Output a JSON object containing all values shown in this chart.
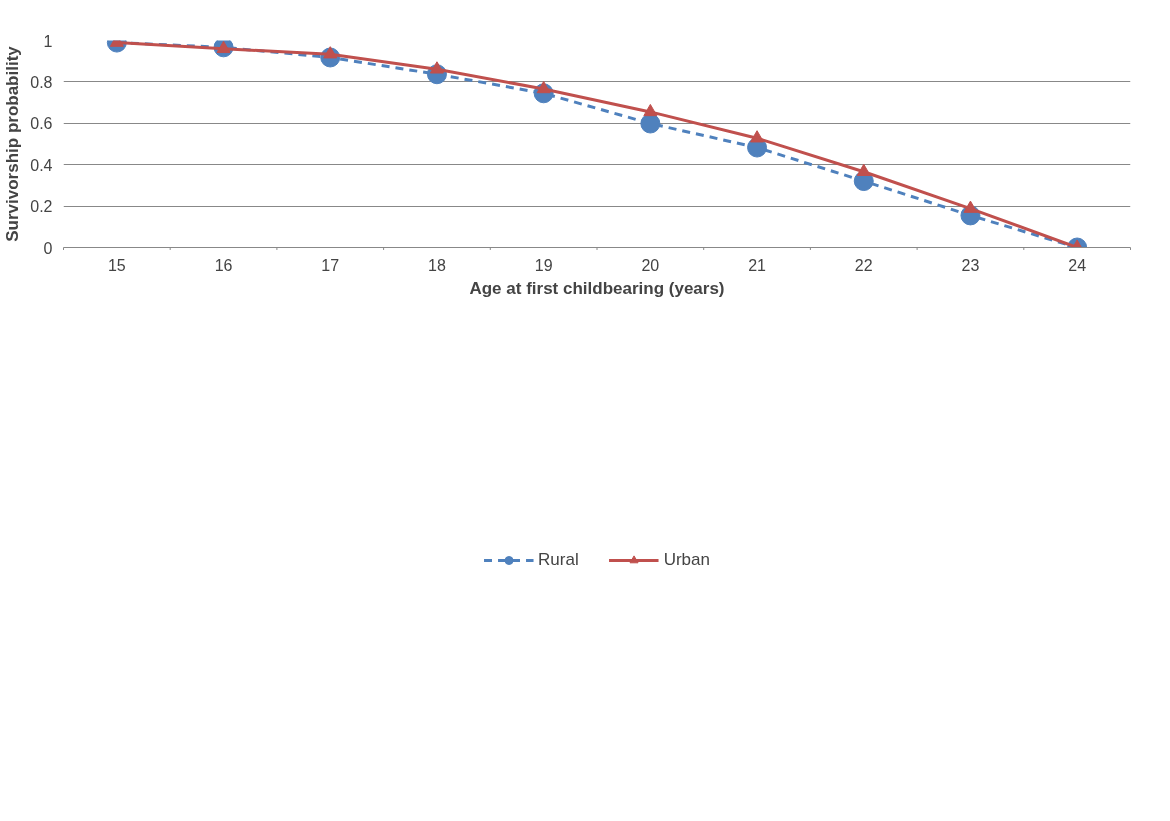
{
  "chart_data": {
    "type": "line",
    "xlabel": "Age at first childbearing (years)",
    "ylabel": "Survivorship probability",
    "categories": [
      "15",
      "16",
      "17",
      "18",
      "19",
      "20",
      "21",
      "22",
      "23",
      "24"
    ],
    "ylim": [
      0,
      1
    ],
    "yticks": [
      0,
      0.2,
      0.4,
      0.6,
      0.8,
      1
    ],
    "grid": "y",
    "legend": "bottom",
    "series": [
      {
        "name": "Rural",
        "color": "#4f81bd",
        "marker": "circle",
        "line_style": "dashed",
        "values": [
          0.99,
          0.967,
          0.918,
          0.837,
          0.745,
          0.599,
          0.483,
          0.321,
          0.155,
          0.0
        ]
      },
      {
        "name": "Urban",
        "color": "#c0504d",
        "marker": "triangle",
        "line_style": "solid",
        "values": [
          0.99,
          0.96,
          0.934,
          0.861,
          0.766,
          0.655,
          0.528,
          0.366,
          0.188,
          0.0
        ]
      }
    ]
  }
}
